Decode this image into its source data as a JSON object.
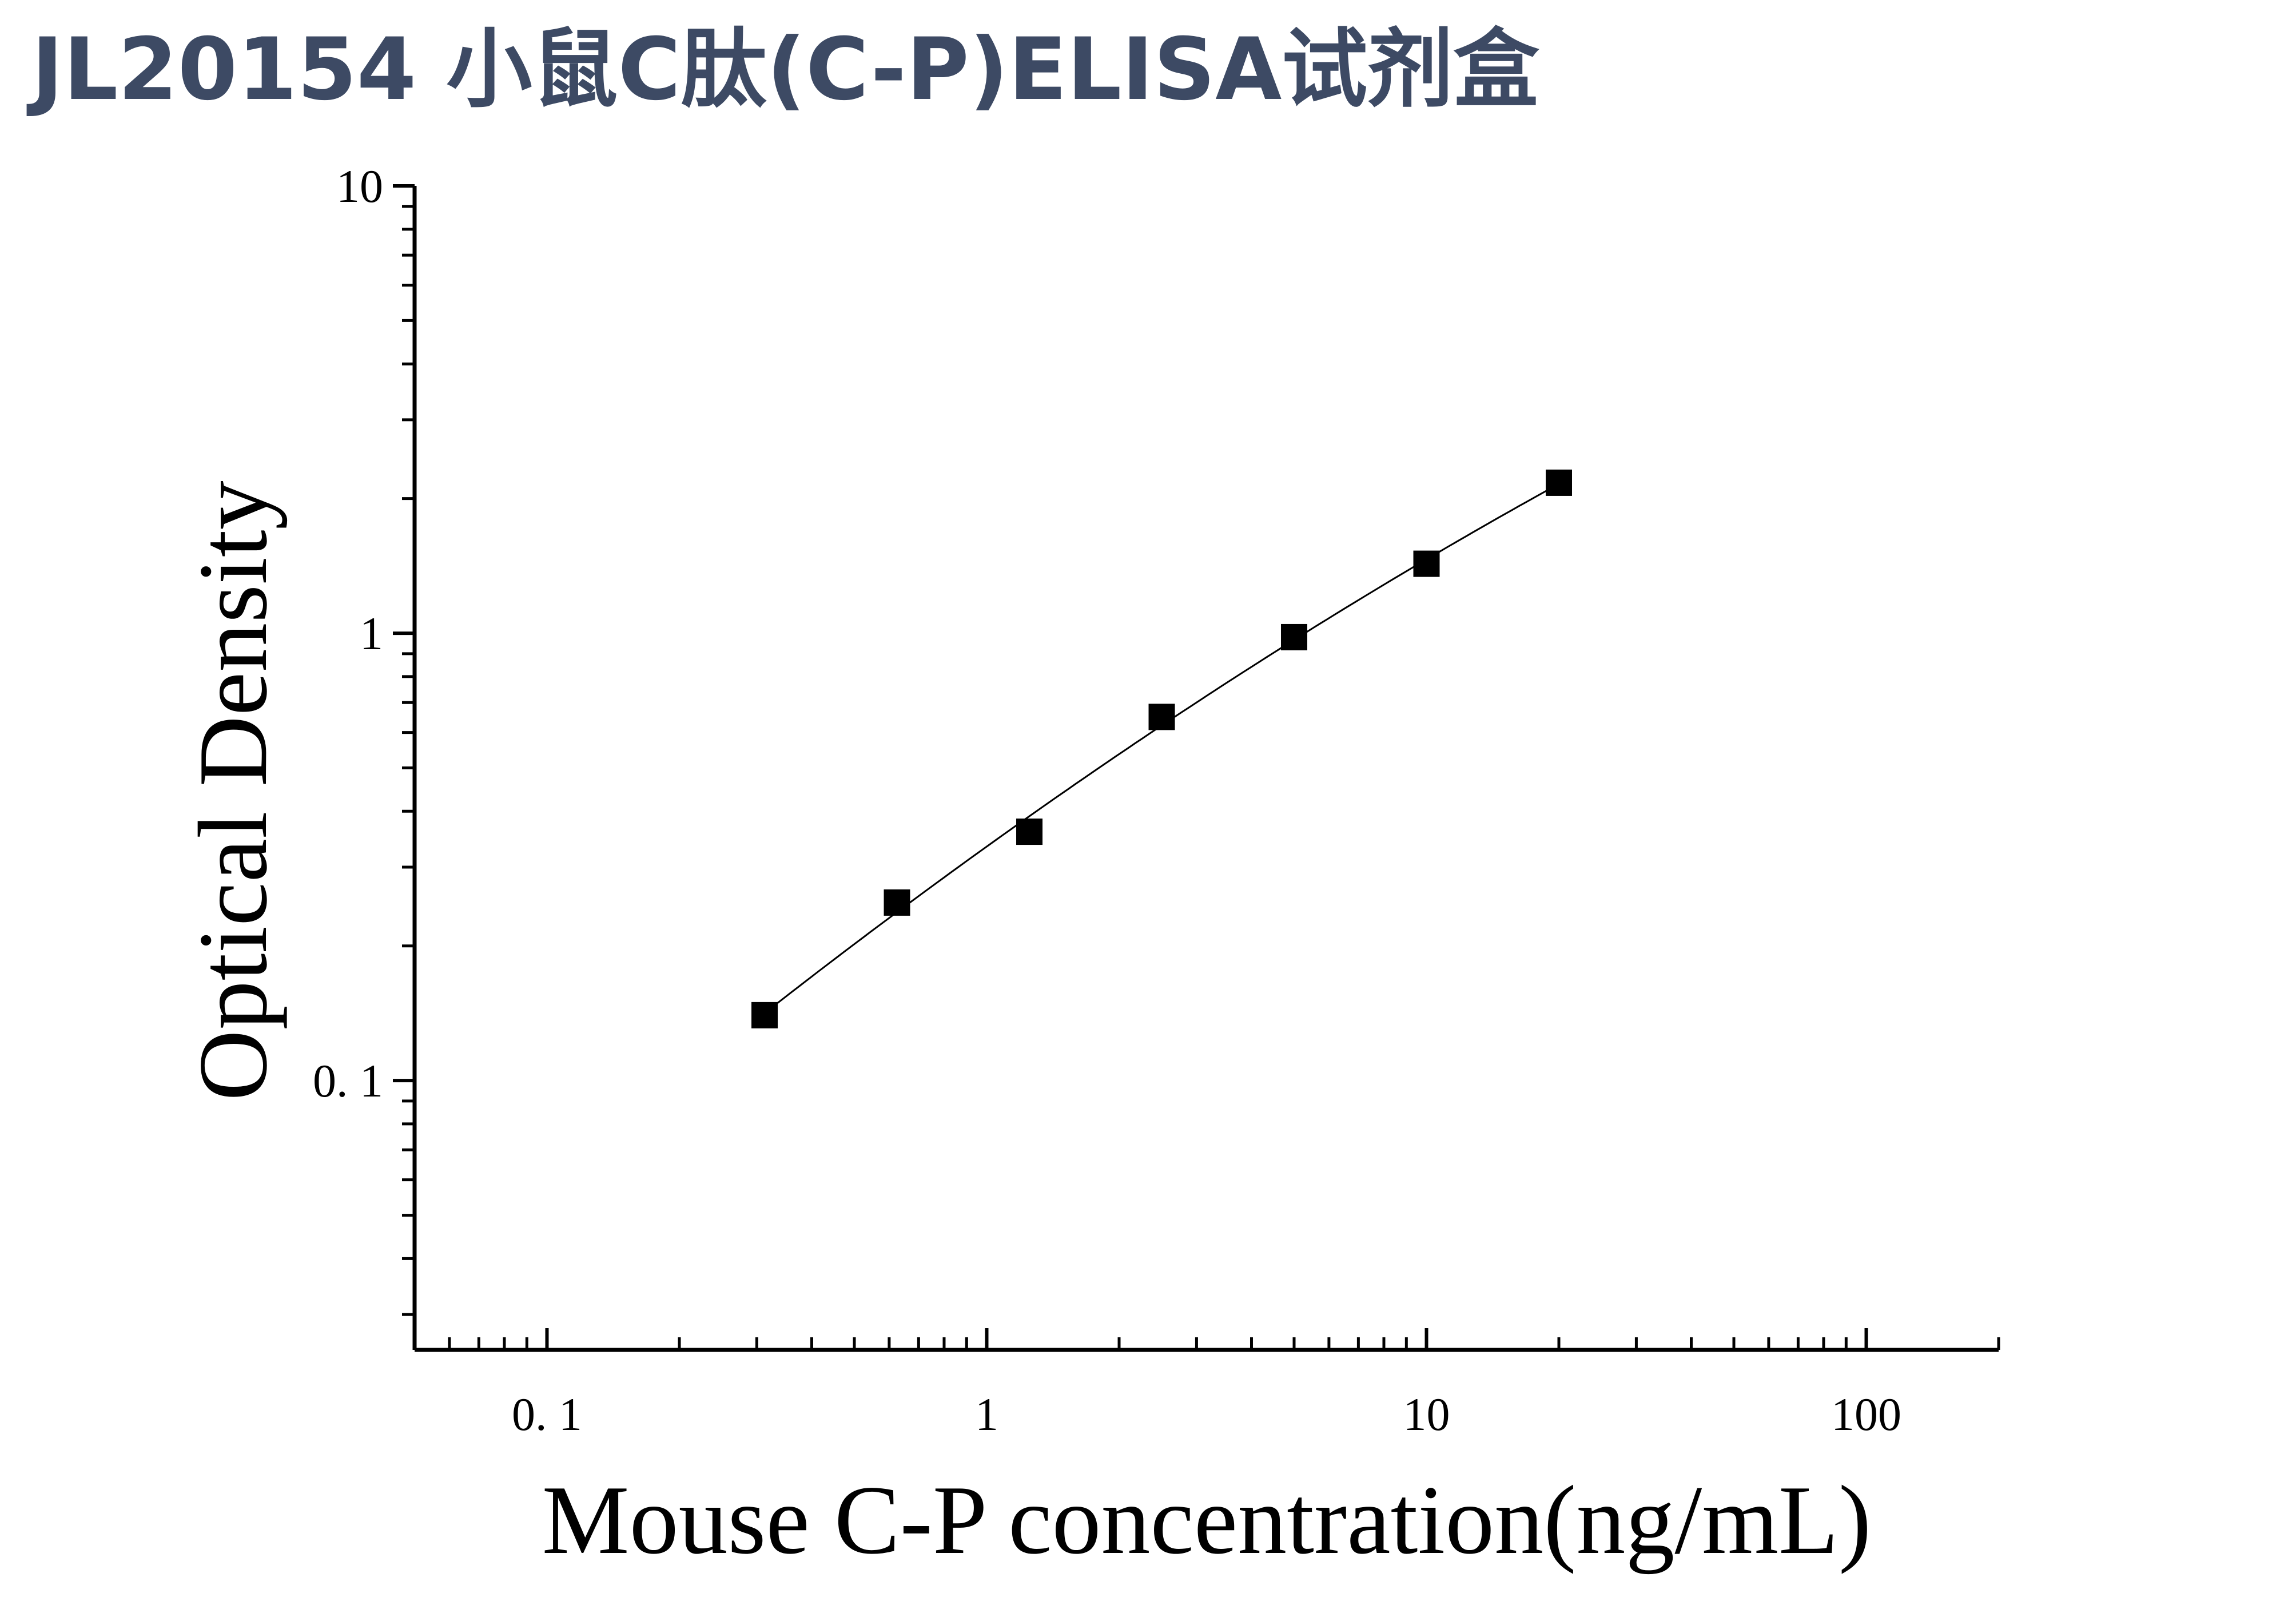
{
  "title": "JL20154 小鼠C肽(C-P)ELISA试剂盒",
  "colors": {
    "title": "#3d4a64",
    "axis": "#000000",
    "marker": "#000000",
    "curve": "#000000"
  },
  "chart_data": {
    "type": "scatter",
    "title": "",
    "xlabel": "Mouse C-P concentration(ng/mL)",
    "ylabel": "Optical Density",
    "x_scale": "log",
    "y_scale": "log",
    "xlim": [
      0.05,
      200
    ],
    "ylim": [
      0.025,
      10
    ],
    "x_ticks": [
      {
        "value": 0.1,
        "label": "0. 1"
      },
      {
        "value": 1,
        "label": "1"
      },
      {
        "value": 10,
        "label": "10"
      },
      {
        "value": 100,
        "label": "100"
      }
    ],
    "y_ticks": [
      {
        "value": 0.1,
        "label": "0. 1"
      },
      {
        "value": 1,
        "label": "1"
      },
      {
        "value": 10,
        "label": "10"
      }
    ],
    "grid": false,
    "legend": "none",
    "marker": "square",
    "series": [
      {
        "x": [
          0.3125,
          0.625,
          1.25,
          2.5,
          5,
          10,
          20
        ],
        "y": [
          0.14,
          0.25,
          0.36,
          0.65,
          0.98,
          1.43,
          2.17
        ]
      }
    ],
    "fit_curve": true
  }
}
